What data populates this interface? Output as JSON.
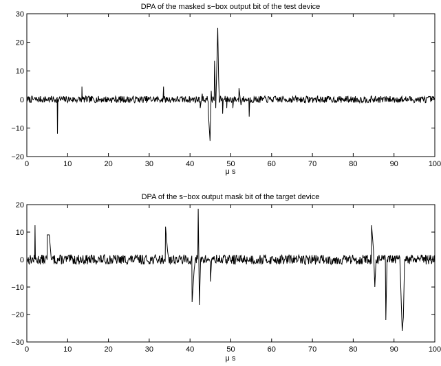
{
  "chart_data": [
    {
      "type": "line",
      "title": "DPA of the masked s−box output bit of the test device",
      "xlabel": "μ s",
      "ylabel": "",
      "xlim": [
        0,
        100
      ],
      "ylim": [
        -20,
        30
      ],
      "xticks": [
        "0",
        "10",
        "20",
        "30",
        "40",
        "50",
        "60",
        "70",
        "80",
        "90",
        "100"
      ],
      "yticks": [
        "30",
        "20",
        "10",
        "0",
        "−10",
        "−20"
      ],
      "grid": false,
      "series": [
        {
          "noise_amplitude": 1.2,
          "baseline": 0,
          "x": [
            0,
            7.5,
            7.6,
            13.5,
            13.6,
            33.5,
            33.6,
            42.5,
            43.0,
            44.5,
            44.9,
            45.2,
            46.0,
            46.3,
            46.8,
            47.0,
            47.2,
            48.0,
            49.0,
            50.5,
            52.0,
            52.5,
            54.5,
            60.0,
            100
          ],
          "y": [
            0,
            -12,
            0,
            4.5,
            0,
            4.5,
            0,
            -3,
            2,
            -5,
            -14.5,
            3,
            13.5,
            -3,
            25,
            8,
            -1,
            -5,
            -3,
            -3,
            4,
            -2,
            -6,
            0,
            0
          ]
        }
      ]
    },
    {
      "type": "line",
      "title": "DPA of the s−box output mask bit of the target device",
      "xlabel": "μ s",
      "ylabel": "",
      "xlim": [
        0,
        100
      ],
      "ylim": [
        -30,
        20
      ],
      "xticks": [
        "0",
        "10",
        "20",
        "30",
        "40",
        "50",
        "60",
        "70",
        "80",
        "90",
        "100"
      ],
      "yticks": [
        "20",
        "10",
        "0",
        "−10",
        "−20",
        "−30"
      ],
      "grid": false,
      "series": [
        {
          "noise_amplitude": 1.8,
          "baseline": 0,
          "x": [
            0,
            2.0,
            2.1,
            5.0,
            5.5,
            6.0,
            6.2,
            34.0,
            34.5,
            34.8,
            40.5,
            41.0,
            41.3,
            42.0,
            42.3,
            42.6,
            45.0,
            45.3,
            84.5,
            85.0,
            85.3,
            85.6,
            88.0,
            88.3,
            91.5,
            92.0,
            92.3,
            92.6,
            100
          ],
          "y": [
            0,
            12.5,
            0,
            9,
            9,
            0,
            0,
            12,
            3,
            0,
            -15.5,
            -4,
            0,
            18.5,
            -16.5,
            0,
            -8,
            0,
            12.5,
            3,
            -10,
            0,
            -22,
            0,
            -3,
            -26,
            -21,
            0,
            0
          ]
        }
      ]
    }
  ]
}
